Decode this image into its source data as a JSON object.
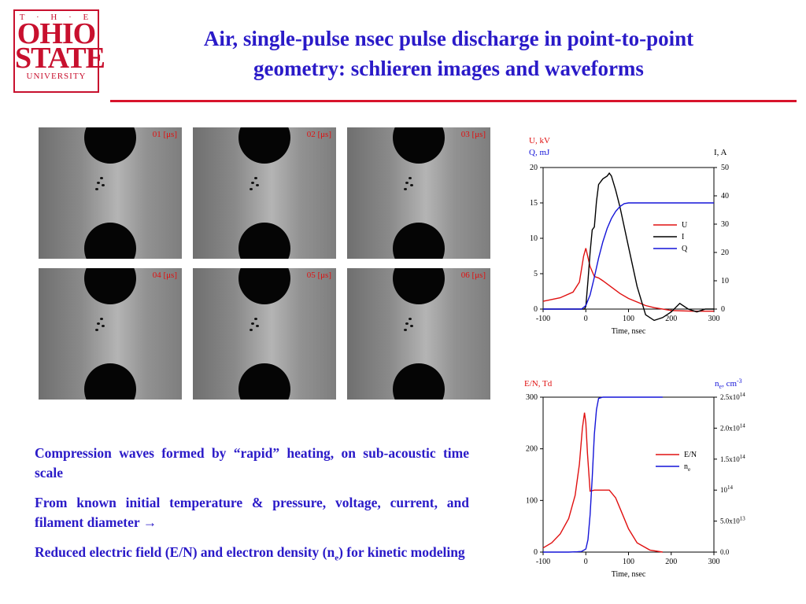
{
  "logo": {
    "the": "T · H · E",
    "line1": "OHIO",
    "line2": "STATE",
    "line3": "UNIVERSITY"
  },
  "title": {
    "line1": "Air, single-pulse nsec pulse discharge in point-to-point",
    "line2": "geometry: schlieren images and waveforms"
  },
  "images": [
    {
      "label": "01 [μs]"
    },
    {
      "label": "02 [μs]"
    },
    {
      "label": "03 [μs]"
    },
    {
      "label": "04 [μs]"
    },
    {
      "label": "05 [μs]"
    },
    {
      "label": "06 [μs]"
    }
  ],
  "bullets": [
    {
      "text": "Compression waves formed by “rapid” heating, on sub-acoustic time scale"
    },
    {
      "text": "From known initial temperature & pressure, voltage, current, and filament diameter      →"
    },
    {
      "text_before": "Reduced electric field (E/N) and electron density (n",
      "sub": "e",
      "text_after": ") for kinetic modeling"
    }
  ],
  "chart_data": [
    {
      "type": "line",
      "xlabel": "Time, nsec",
      "ylabel_left": [
        "U, kV",
        "Q, mJ"
      ],
      "ylabel_right": "I, A",
      "xlim": [
        -100,
        300
      ],
      "ylim_left": [
        0,
        20
      ],
      "ylim_right": [
        0,
        50
      ],
      "x_ticks": [
        "-100",
        "0",
        "100",
        "200",
        "300"
      ],
      "y_ticks_left": [
        "0",
        "5",
        "10",
        "15",
        "20"
      ],
      "y_ticks_right": [
        "0",
        "10",
        "20",
        "30",
        "40",
        "50"
      ],
      "legend": [
        "U",
        "I",
        "Q"
      ],
      "legend_position": "right",
      "colors": {
        "U": "#e01010",
        "I": "#000000",
        "Q": "#1414d8"
      },
      "series": [
        {
          "name": "U",
          "axis": "left",
          "color": "#e01010",
          "x": [
            -100,
            -60,
            -30,
            -15,
            -5,
            0,
            10,
            20,
            30,
            40,
            60,
            80,
            100,
            120,
            140,
            160,
            200,
            250,
            300
          ],
          "y": [
            1.1,
            1.6,
            2.4,
            3.8,
            7.5,
            8.6,
            6.0,
            4.6,
            4.4,
            4.0,
            3.1,
            2.2,
            1.5,
            1.0,
            0.5,
            0.2,
            -0.2,
            -0.3,
            -0.3
          ]
        },
        {
          "name": "I",
          "axis": "right",
          "color": "#000000",
          "x": [
            -100,
            -20,
            -3,
            0,
            5,
            10,
            15,
            20,
            25,
            30,
            40,
            50,
            55,
            60,
            70,
            80,
            100,
            120,
            140,
            160,
            180,
            200,
            220,
            240,
            260,
            280,
            300
          ],
          "y": [
            0,
            0,
            0,
            1,
            10,
            20,
            28,
            29,
            38,
            44,
            46,
            47,
            48,
            47,
            42,
            36,
            22,
            8,
            -2,
            -4,
            -3,
            -1,
            2,
            0,
            -1,
            0,
            0
          ]
        },
        {
          "name": "Q",
          "axis": "left",
          "color": "#1414d8",
          "x": [
            -100,
            -10,
            0,
            10,
            20,
            30,
            40,
            50,
            60,
            70,
            80,
            90,
            100,
            120,
            150,
            200,
            250,
            300
          ],
          "y": [
            0,
            0,
            0.5,
            2.0,
            4.5,
            7.2,
            9.5,
            11.4,
            12.8,
            13.8,
            14.5,
            14.9,
            15.0,
            15.0,
            15.0,
            15.0,
            15.0,
            15.0
          ]
        }
      ]
    },
    {
      "type": "line",
      "xlabel": "Time, nsec",
      "ylabel_left": "E/N, Td",
      "ylabel_right": "n_e, cm^-3",
      "xlim": [
        -100,
        300
      ],
      "ylim_left": [
        0,
        300
      ],
      "ylim_right": [
        0,
        250000000000000.0
      ],
      "x_ticks": [
        "-100",
        "0",
        "100",
        "200",
        "300"
      ],
      "y_ticks_left": [
        "0",
        "100",
        "200",
        "300"
      ],
      "y_ticks_right": [
        {
          "mant": "0.0",
          "exp": ""
        },
        {
          "mant": "5.0x10",
          "exp": "13"
        },
        {
          "mant": "10",
          "exp": "14"
        },
        {
          "mant": "1.5x10",
          "exp": "14"
        },
        {
          "mant": "2.0x10",
          "exp": "14"
        },
        {
          "mant": "2.5x10",
          "exp": "14"
        }
      ],
      "legend": [
        "E/N",
        "n_e"
      ],
      "legend_position": "right",
      "colors": {
        "E/N": "#e01010",
        "n_e": "#1414d8"
      },
      "series": [
        {
          "name": "E/N",
          "axis": "left",
          "color": "#e01010",
          "x": [
            -100,
            -80,
            -60,
            -40,
            -25,
            -15,
            -8,
            -3,
            0,
            4,
            10,
            20,
            40,
            55,
            70,
            85,
            100,
            120,
            150,
            180
          ],
          "y": [
            8,
            18,
            35,
            65,
            110,
            170,
            240,
            270,
            250,
            190,
            118,
            120,
            120,
            120,
            105,
            75,
            45,
            18,
            4,
            0
          ]
        },
        {
          "name": "n_e",
          "axis": "right",
          "color": "#1414d8",
          "x": [
            -100,
            -40,
            -20,
            -10,
            0,
            5,
            10,
            15,
            20,
            25,
            30,
            40,
            60,
            100,
            150,
            180
          ],
          "y": [
            0,
            0,
            500000000000.0,
            1000000000000.0,
            5000000000000.0,
            20000000000000.0,
            60000000000000.0,
            120000000000000.0,
            190000000000000.0,
            230000000000000.0,
            248000000000000.0,
            250000000000000.0,
            250000000000000.0,
            250000000000000.0,
            250000000000000.0,
            250000000000000.0
          ]
        }
      ]
    }
  ]
}
